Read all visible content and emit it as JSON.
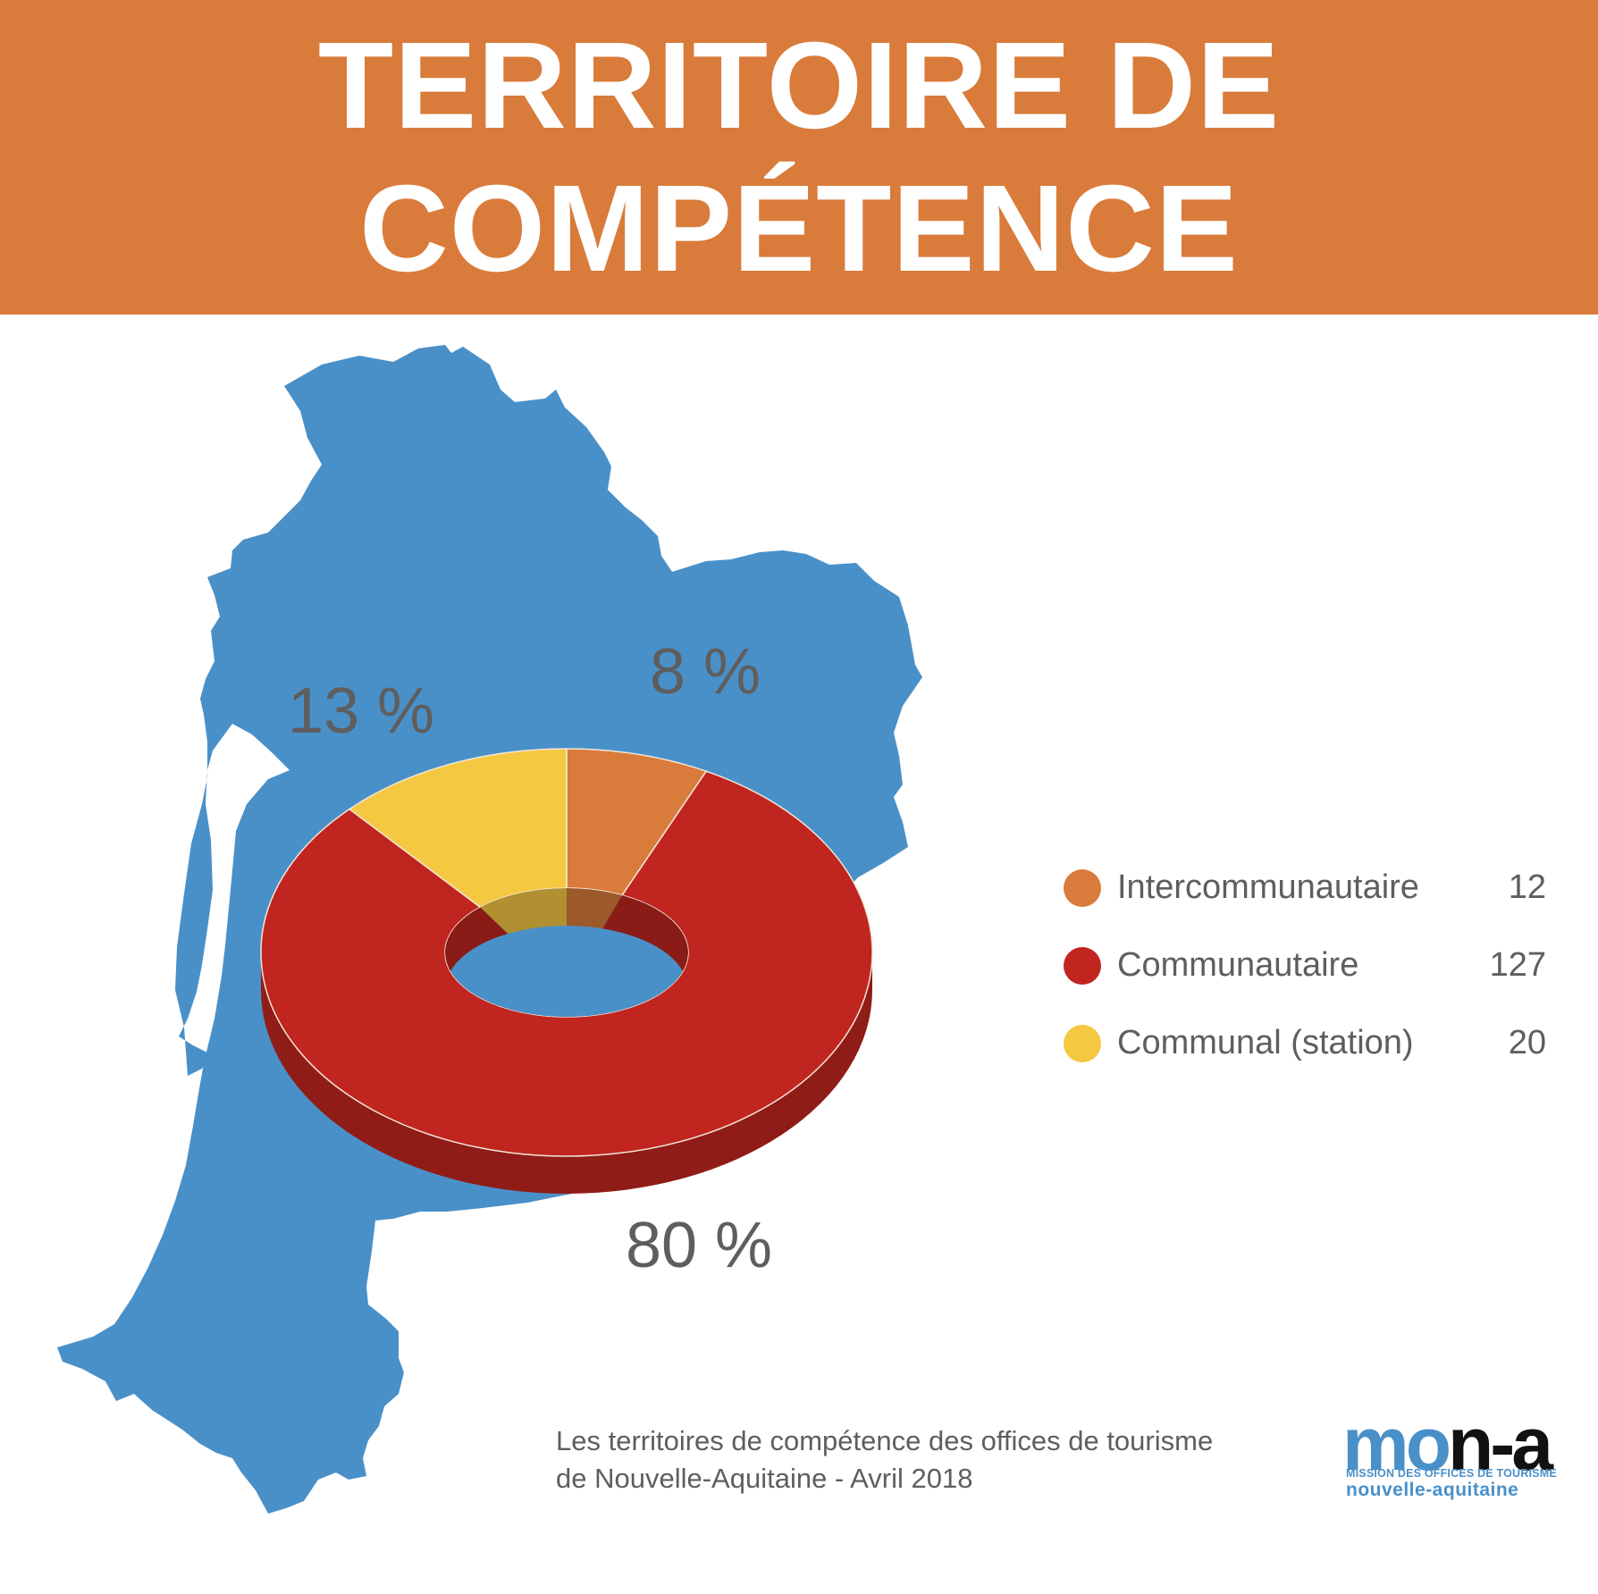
{
  "header": {
    "title_line1": "TERRITOIRE DE",
    "title_line2": "COMPÉTENCE",
    "background_color": "#d97b3b"
  },
  "map": {
    "region": "Nouvelle-Aquitaine",
    "color": "#4a90c8"
  },
  "chart_data": {
    "type": "pie",
    "style": "3d-donut",
    "title": "TERRITOIRE DE COMPÉTENCE",
    "categories": [
      "Intercommunautaire",
      "Communautaire",
      "Communal (station)"
    ],
    "values": [
      12,
      127,
      20
    ],
    "percent_labels": [
      "8 %",
      "80 %",
      "13 %"
    ],
    "colors": [
      "#d97b3b",
      "#c0251f",
      "#f5c842"
    ],
    "legend_position": "right"
  },
  "legend": {
    "items": [
      {
        "label": "Intercommunautaire",
        "value": "12",
        "color": "#d97b3b"
      },
      {
        "label": "Communautaire",
        "value": "127",
        "color": "#c0251f"
      },
      {
        "label": "Communal (station)",
        "value": "20",
        "color": "#f5c842"
      }
    ]
  },
  "caption": {
    "line1": "Les territoires de compétence des offices de tourisme",
    "line2": "de Nouvelle-Aquitaine - Avril 2018"
  },
  "logo": {
    "word_mo": "mo",
    "word_na": "n-a",
    "line1": "MISSION DES OFFICES DE TOURISME",
    "line2": "nouvelle-aquitaine"
  }
}
